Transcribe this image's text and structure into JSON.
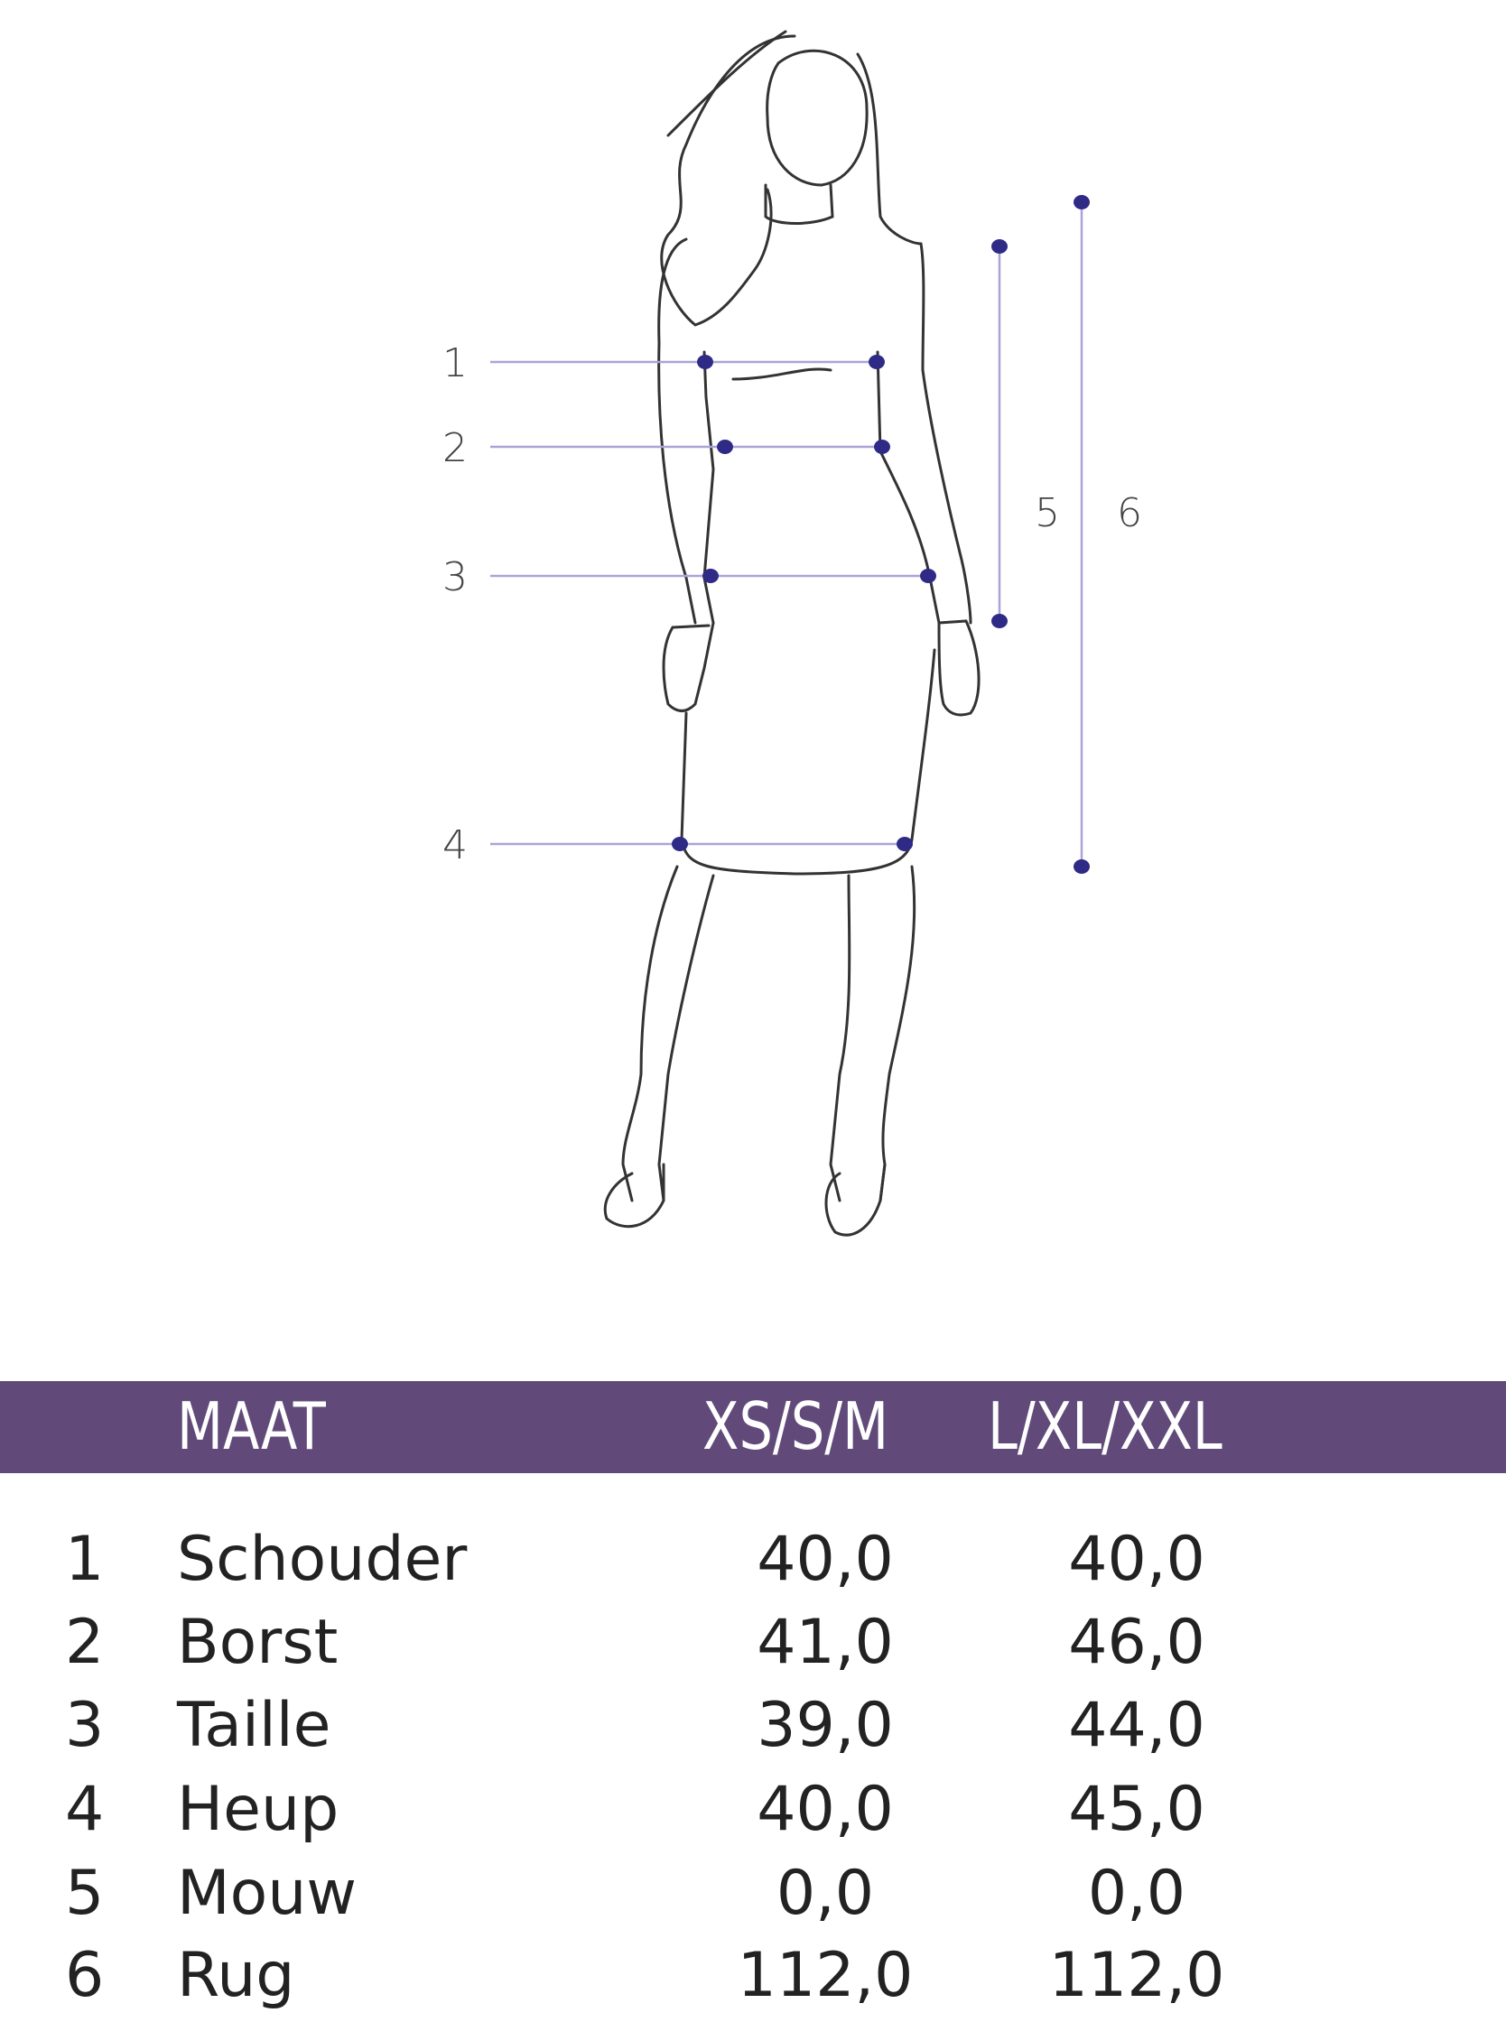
{
  "diagram": {
    "line_color": "#a9a4d8",
    "dot_color": "#2e2a86",
    "markers": [
      "1",
      "2",
      "3",
      "4",
      "5",
      "6"
    ]
  },
  "table": {
    "header_color": "#614a7a",
    "headers": {
      "label": "MAAT",
      "col1": "XS/S/M",
      "col2": "L/XL/XXL"
    },
    "rows": [
      {
        "num": "1",
        "label": "Schouder",
        "col1": "40,0",
        "col2": "40,0"
      },
      {
        "num": "2",
        "label": "Borst",
        "col1": "41,0",
        "col2": "46,0"
      },
      {
        "num": "3",
        "label": "Taille",
        "col1": "39,0",
        "col2": "44,0"
      },
      {
        "num": "4",
        "label": "Heup",
        "col1": "40,0",
        "col2": "45,0"
      },
      {
        "num": "5",
        "label": "Mouw",
        "col1": "0,0",
        "col2": "0,0"
      },
      {
        "num": "6",
        "label": "Rug",
        "col1": "112,0",
        "col2": "112,0"
      }
    ]
  }
}
